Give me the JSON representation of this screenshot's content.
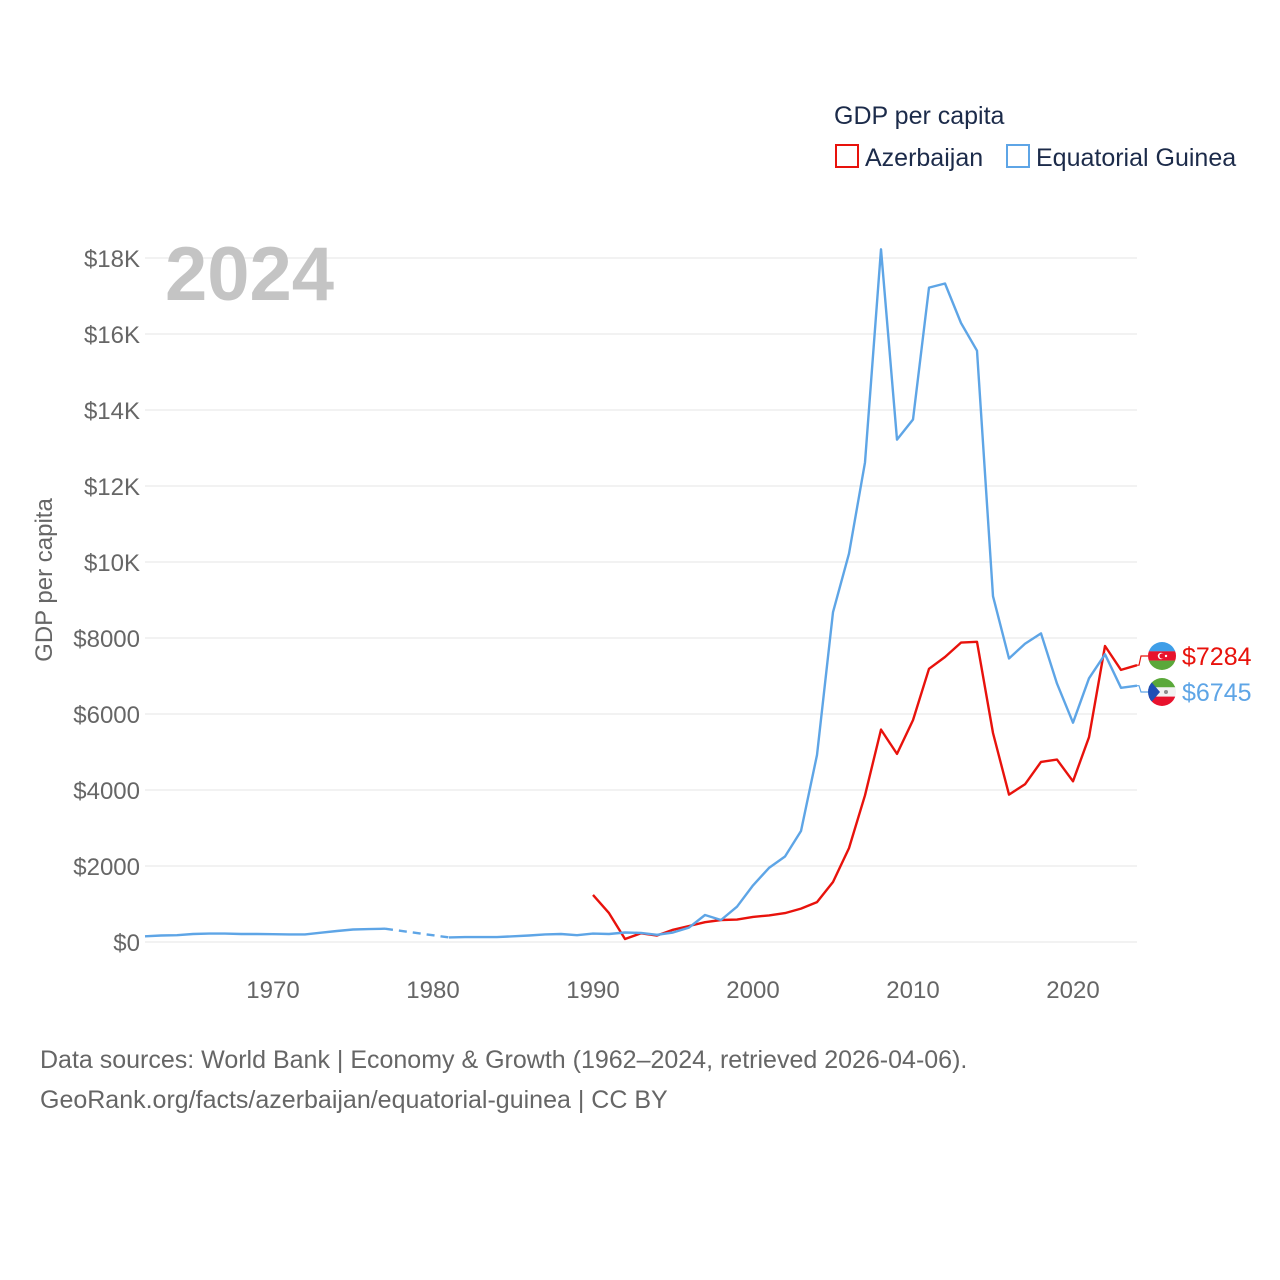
{
  "chart_data": {
    "type": "line",
    "year_label": "2024",
    "ylabel": "GDP per capita",
    "xlabel": "",
    "legend_title": "GDP per capita",
    "legend_position": "top-right",
    "xlim": [
      1962,
      2024
    ],
    "ylim": [
      0,
      18000
    ],
    "x_ticks": [
      1970,
      1980,
      1990,
      2000,
      2010,
      2020
    ],
    "x_tick_labels": [
      "1970",
      "1980",
      "1990",
      "2000",
      "2010",
      "2020"
    ],
    "y_ticks": [
      0,
      2000,
      4000,
      6000,
      8000,
      10000,
      12000,
      14000,
      16000,
      18000
    ],
    "y_tick_labels": [
      "$0",
      "$2000",
      "$4000",
      "$6000",
      "$8000",
      "$10K",
      "$12K",
      "$14K",
      "$16K",
      "$18K"
    ],
    "grid": true,
    "series": [
      {
        "name": "Azerbaijan",
        "color": "#e8120c",
        "end_label": "$7284",
        "points": [
          [
            1990,
            1240
          ],
          [
            1991,
            760
          ],
          [
            1992,
            80
          ],
          [
            1993,
            230
          ],
          [
            1994,
            170
          ],
          [
            1995,
            320
          ],
          [
            1996,
            420
          ],
          [
            1997,
            520
          ],
          [
            1998,
            580
          ],
          [
            1999,
            590
          ],
          [
            2000,
            660
          ],
          [
            2001,
            700
          ],
          [
            2002,
            760
          ],
          [
            2003,
            880
          ],
          [
            2004,
            1050
          ],
          [
            2005,
            1580
          ],
          [
            2006,
            2470
          ],
          [
            2007,
            3860
          ],
          [
            2008,
            5590
          ],
          [
            2009,
            4950
          ],
          [
            2010,
            5840
          ],
          [
            2011,
            7190
          ],
          [
            2012,
            7500
          ],
          [
            2013,
            7880
          ],
          [
            2014,
            7900
          ],
          [
            2015,
            5500
          ],
          [
            2016,
            3880
          ],
          [
            2017,
            4150
          ],
          [
            2018,
            4740
          ],
          [
            2019,
            4800
          ],
          [
            2020,
            4230
          ],
          [
            2021,
            5390
          ],
          [
            2022,
            7790
          ],
          [
            2023,
            7160
          ],
          [
            2024,
            7284
          ]
        ],
        "gaps": []
      },
      {
        "name": "Equatorial Guinea",
        "color": "#5ea5e6",
        "end_label": "$6745",
        "points": [
          [
            1962,
            150
          ],
          [
            1963,
            170
          ],
          [
            1964,
            180
          ],
          [
            1965,
            210
          ],
          [
            1966,
            220
          ],
          [
            1967,
            220
          ],
          [
            1968,
            210
          ],
          [
            1969,
            210
          ],
          [
            1970,
            205
          ],
          [
            1971,
            200
          ],
          [
            1972,
            200
          ],
          [
            1973,
            245
          ],
          [
            1974,
            290
          ],
          [
            1975,
            330
          ],
          [
            1976,
            340
          ],
          [
            1977,
            350
          ],
          [
            1981,
            120
          ],
          [
            1982,
            130
          ],
          [
            1983,
            130
          ],
          [
            1984,
            130
          ],
          [
            1985,
            150
          ],
          [
            1986,
            170
          ],
          [
            1987,
            200
          ],
          [
            1988,
            210
          ],
          [
            1989,
            180
          ],
          [
            1990,
            220
          ],
          [
            1991,
            210
          ],
          [
            1992,
            250
          ],
          [
            1993,
            240
          ],
          [
            1994,
            190
          ],
          [
            1995,
            250
          ],
          [
            1996,
            380
          ],
          [
            1997,
            710
          ],
          [
            1998,
            580
          ],
          [
            1999,
            930
          ],
          [
            2000,
            1490
          ],
          [
            2001,
            1950
          ],
          [
            2002,
            2250
          ],
          [
            2003,
            2920
          ],
          [
            2004,
            4920
          ],
          [
            2005,
            8680
          ],
          [
            2006,
            10220
          ],
          [
            2007,
            12620
          ],
          [
            2008,
            18230
          ],
          [
            2009,
            13220
          ],
          [
            2010,
            13750
          ],
          [
            2011,
            17220
          ],
          [
            2012,
            17330
          ],
          [
            2013,
            16290
          ],
          [
            2014,
            15560
          ],
          [
            2015,
            9100
          ],
          [
            2016,
            7460
          ],
          [
            2017,
            7850
          ],
          [
            2018,
            8120
          ],
          [
            2019,
            6800
          ],
          [
            2020,
            5770
          ],
          [
            2021,
            6940
          ],
          [
            2022,
            7570
          ],
          [
            2023,
            6690
          ],
          [
            2024,
            6745
          ]
        ],
        "gaps": [
          [
            1977,
            1981
          ]
        ]
      }
    ]
  },
  "footer": {
    "line1": "Data sources: World Bank | Economy & Growth (1962–2024, retrieved 2026-04-06).",
    "line2": "GeoRank.org/facts/azerbaijan/equatorial-guinea | CC BY"
  },
  "flags": {
    "azerbaijan": "azerbaijan-flag-icon",
    "equatorial_guinea": "equatorial-guinea-flag-icon"
  }
}
